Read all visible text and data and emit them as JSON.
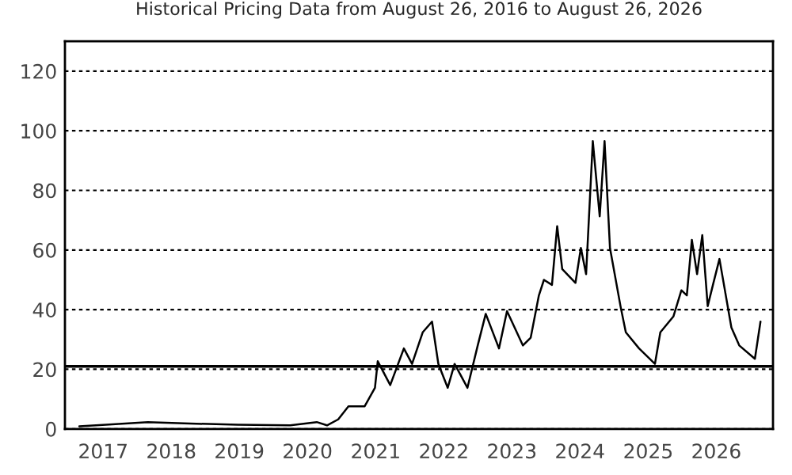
{
  "chart_data": {
    "type": "line",
    "title": "Historical Pricing Data from August 26, 2016 to August 26, 2026",
    "x": [
      "2016-08-26",
      "2017-01-15",
      "2017-08-28",
      "2018-04-12",
      "2018-12-25",
      "2019-10-01",
      "2020-02-20",
      "2020-04-15",
      "2020-06-14",
      "2020-08-08",
      "2020-11-03",
      "2020-12-28",
      "2021-01-12",
      "2021-03-20",
      "2021-06-01",
      "2021-07-15",
      "2021-09-10",
      "2021-10-30",
      "2021-12-03",
      "2022-01-22",
      "2022-02-28",
      "2022-05-08",
      "2022-07-02",
      "2022-08-14",
      "2022-10-24",
      "2022-12-06",
      "2023-03-01",
      "2023-04-12",
      "2023-05-26",
      "2023-06-22",
      "2023-08-04",
      "2023-09-01",
      "2023-09-28",
      "2023-12-08",
      "2024-01-06",
      "2024-02-03",
      "2024-03-10",
      "2024-04-16",
      "2024-05-12",
      "2024-06-10",
      "2024-08-06",
      "2024-09-03",
      "2024-11-13",
      "2025-02-06",
      "2025-03-07",
      "2025-05-16",
      "2025-06-28",
      "2025-07-27",
      "2025-08-23",
      "2025-09-20",
      "2025-10-18",
      "2025-11-16",
      "2025-12-14",
      "2026-01-18",
      "2026-03-23",
      "2026-05-04",
      "2026-07-27",
      "2026-08-26"
    ],
    "series": [
      {
        "color": "#000000",
        "values": [
          0.9,
          1.4,
          2.3,
          1.8,
          1.4,
          1.2,
          2.3,
          1.2,
          3.2,
          7.6,
          7.6,
          13.8,
          22.7,
          14.7,
          27,
          21.8,
          32.4,
          36,
          21.8,
          13.8,
          21.8,
          13.8,
          28,
          38.6,
          27,
          39.5,
          28,
          30.6,
          44.8,
          50,
          48.3,
          68,
          53.6,
          49,
          60.7,
          51.9,
          96.5,
          71.3,
          96.5,
          60.7,
          41,
          32.4,
          27,
          21.8,
          32.4,
          37.7,
          46.5,
          44.8,
          63.4,
          51.9,
          65,
          41.2,
          48.3,
          57,
          34,
          28,
          23.5,
          36
        ]
      }
    ],
    "xlim": [
      "2016-06-10",
      "2026-11-01"
    ],
    "xticks": [
      {
        "value": "2017-01-01",
        "label": "2017"
      },
      {
        "value": "2018-01-01",
        "label": "2018"
      },
      {
        "value": "2019-01-01",
        "label": "2019"
      },
      {
        "value": "2020-01-01",
        "label": "2020"
      },
      {
        "value": "2021-01-01",
        "label": "2021"
      },
      {
        "value": "2022-01-01",
        "label": "2022"
      },
      {
        "value": "2023-01-01",
        "label": "2023"
      },
      {
        "value": "2024-01-01",
        "label": "2024"
      },
      {
        "value": "2025-01-01",
        "label": "2025"
      },
      {
        "value": "2026-01-01",
        "label": "2026"
      }
    ],
    "ylim": [
      0,
      130
    ],
    "yticks": [
      0,
      20,
      40,
      60,
      80,
      100,
      120
    ],
    "grid": "y",
    "ref_lines": [
      {
        "axis": "y",
        "value": 21,
        "color": "#000000"
      }
    ]
  }
}
